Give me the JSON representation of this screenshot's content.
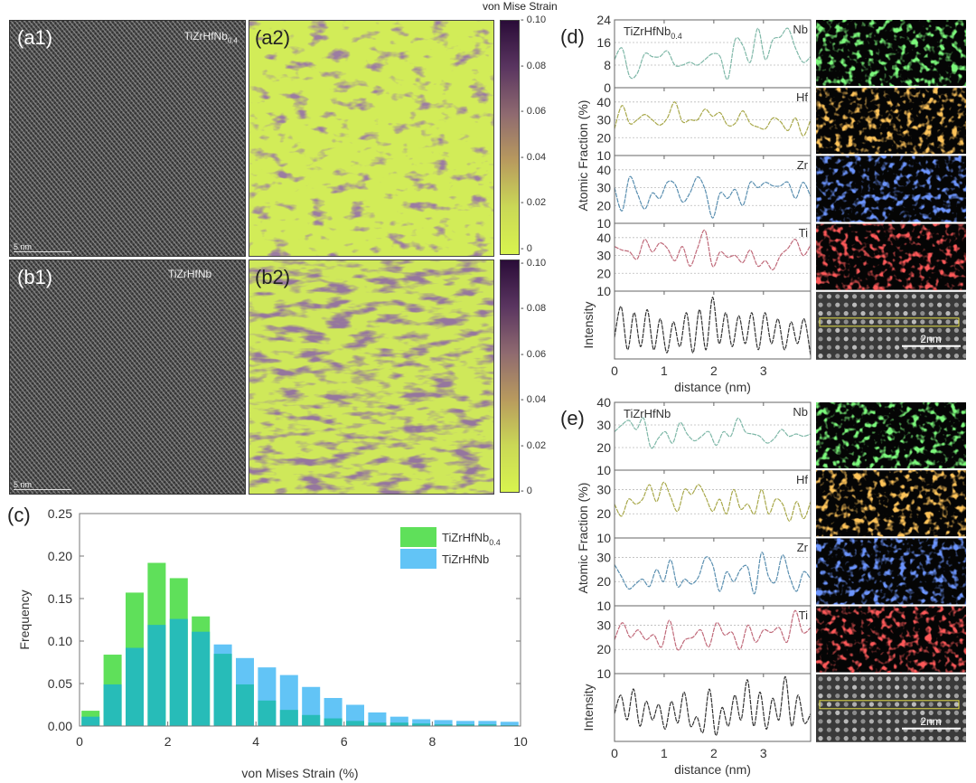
{
  "panels": {
    "a1": {
      "label": "(a1)",
      "composition": {
        "base": "TiZrHfNb",
        "sub": "0.4"
      },
      "scale_bar": "5 nm"
    },
    "a2": {
      "label": "(a2)"
    },
    "b1": {
      "label": "(b1)",
      "composition": {
        "base": "TiZrHfNb",
        "sub": ""
      },
      "scale_bar": "5 nm"
    },
    "b2": {
      "label": "(b2)"
    },
    "colorbar": {
      "title": "von Mise Strain",
      "ticks": [
        "0.10",
        "0.08",
        "0.06",
        "0.04",
        "0.02",
        "0"
      ]
    },
    "c": {
      "label": "(c)"
    },
    "d": {
      "label": "(d)"
    },
    "e": {
      "label": "(e)"
    }
  },
  "colors": {
    "green": "#5fe05a",
    "blue": "#62c4f6",
    "overlap": "#27bcb8",
    "Nb": "#7fb8a8",
    "Hf": "#a8a84a",
    "Zr": "#5a8fb0",
    "Ti": "#c06a7a",
    "Intensity": "#333333"
  },
  "chart_data": [
    {
      "type": "bar",
      "id": "c",
      "title": "",
      "xlabel": "von Mises Strain (%)",
      "ylabel": "Frequency",
      "xlim": [
        0,
        10
      ],
      "ylim": [
        0,
        0.25
      ],
      "xticks": [
        "0",
        "2",
        "4",
        "6",
        "8",
        "10"
      ],
      "yticks": [
        "0.00",
        "0.05",
        "0.10",
        "0.15",
        "0.20",
        "0.25"
      ],
      "legend_position": "top-right",
      "bin_width": 0.5,
      "x": [
        0.25,
        0.75,
        1.25,
        1.75,
        2.25,
        2.75,
        3.25,
        3.75,
        4.25,
        4.75,
        5.25,
        5.75,
        6.25,
        6.75,
        7.25,
        7.75,
        8.25,
        8.75,
        9.25,
        9.75
      ],
      "series": [
        {
          "name": "TiZrHfNb",
          "sub": "0.4",
          "values": [
            0.018,
            0.084,
            0.157,
            0.192,
            0.174,
            0.129,
            0.085,
            0.049,
            0.03,
            0.019,
            0.013,
            0.009,
            0.006,
            0.004,
            0.004,
            0.003,
            0.002,
            0.002,
            0.002,
            0.001
          ]
        },
        {
          "name": "TiZrHfNb",
          "sub": "",
          "values": [
            0.011,
            0.049,
            0.092,
            0.119,
            0.126,
            0.111,
            0.096,
            0.08,
            0.069,
            0.06,
            0.046,
            0.033,
            0.025,
            0.016,
            0.011,
            0.008,
            0.007,
            0.006,
            0.006,
            0.005
          ]
        }
      ]
    },
    {
      "type": "line",
      "id": "d",
      "composition": {
        "base": "TiZrHfNb",
        "sub": "0.4"
      },
      "xlabel": "distance (nm)",
      "ylabel": "Atomic Fraction (%)",
      "xlim": [
        0,
        3.95
      ],
      "xticks": [
        "0",
        "1",
        "2",
        "3"
      ],
      "series": [
        {
          "name": "Nb",
          "ylim": [
            0,
            24
          ],
          "yticks": [
            "0",
            "8",
            "16",
            "24"
          ],
          "values": [
            10,
            14,
            4,
            5,
            12,
            11,
            11,
            13,
            8,
            8,
            9,
            8,
            10,
            12,
            11,
            3,
            17,
            15,
            9,
            21,
            10,
            17,
            18,
            21,
            14,
            9,
            11
          ]
        },
        {
          "name": "Hf",
          "ylim": [
            10,
            48
          ],
          "yticks": [
            "10",
            "20",
            "30",
            "40"
          ],
          "values": [
            25,
            38,
            28,
            30,
            33,
            30,
            27,
            31,
            40,
            29,
            30,
            30,
            36,
            32,
            34,
            27,
            28,
            35,
            28,
            26,
            25,
            31,
            29,
            24,
            31,
            21,
            30
          ]
        },
        {
          "name": "Zr",
          "ylim": [
            10,
            48
          ],
          "yticks": [
            "10",
            "20",
            "30",
            "40"
          ],
          "values": [
            30,
            17,
            36,
            27,
            18,
            27,
            24,
            33,
            32,
            22,
            27,
            36,
            29,
            13,
            27,
            24,
            29,
            20,
            33,
            30,
            33,
            31,
            31,
            33,
            24,
            33,
            25
          ]
        },
        {
          "name": "Ti",
          "ylim": [
            10,
            48
          ],
          "yticks": [
            "10",
            "20",
            "30",
            "40"
          ],
          "values": [
            35,
            33,
            32,
            28,
            39,
            32,
            37,
            34,
            27,
            35,
            24,
            34,
            44,
            24,
            32,
            29,
            30,
            26,
            33,
            24,
            27,
            22,
            30,
            34,
            39,
            30,
            36
          ]
        },
        {
          "name": "Intensity",
          "ylim": [
            -0.05,
            1.05
          ],
          "yticks": [],
          "values": [
            0.3,
            0.8,
            0.1,
            0.7,
            0.15,
            0.75,
            0.1,
            0.6,
            0.05,
            0.55,
            0.15,
            0.7,
            0.05,
            0.75,
            0.1,
            0.95,
            0.2,
            0.7,
            0.15,
            0.65,
            0.2,
            0.7,
            0.1,
            0.7,
            0.2,
            0.6,
            0.1,
            0.55,
            0.2,
            0.6,
            0.0
          ]
        }
      ],
      "scale_bar": "2nm"
    },
    {
      "type": "line",
      "id": "e",
      "composition": {
        "base": "TiZrHfNb",
        "sub": ""
      },
      "xlabel": "distance (nm)",
      "ylabel": "Atomic Fraction (%)",
      "xlim": [
        0,
        3.95
      ],
      "xticks": [
        "0",
        "1",
        "2",
        "3"
      ],
      "series": [
        {
          "name": "Nb",
          "ylim": [
            10,
            40
          ],
          "yticks": [
            "10",
            "20",
            "30",
            "40"
          ],
          "values": [
            27,
            30,
            32,
            28,
            33,
            20,
            24,
            27,
            22,
            31,
            26,
            23,
            25,
            27,
            21,
            27,
            25,
            33,
            27,
            26,
            25,
            22,
            24,
            28,
            25,
            26,
            25,
            26
          ]
        },
        {
          "name": "Hf",
          "ylim": [
            10,
            38
          ],
          "yticks": [
            "10",
            "20",
            "30"
          ],
          "values": [
            24,
            19,
            26,
            24,
            26,
            32,
            25,
            33,
            27,
            21,
            30,
            28,
            32,
            27,
            21,
            26,
            20,
            30,
            22,
            24,
            20,
            30,
            20,
            26,
            24,
            17,
            25,
            18,
            25
          ]
        },
        {
          "name": "Zr",
          "ylim": [
            10,
            38
          ],
          "yticks": [
            "10",
            "20",
            "30"
          ],
          "values": [
            27,
            22,
            17,
            19,
            21,
            18,
            25,
            20,
            29,
            18,
            21,
            19,
            22,
            30,
            27,
            16,
            24,
            20,
            25,
            26,
            15,
            32,
            22,
            20,
            31,
            22,
            16,
            24,
            21
          ]
        },
        {
          "name": "Ti",
          "ylim": [
            10,
            38
          ],
          "yticks": [
            "10",
            "20",
            "30"
          ],
          "values": [
            24,
            31,
            25,
            28,
            24,
            26,
            21,
            32,
            20,
            24,
            25,
            28,
            21,
            31,
            26,
            27,
            20,
            30,
            23,
            28,
            27,
            29,
            23,
            36,
            27,
            29
          ]
        },
        {
          "name": "Intensity",
          "ylim": [
            -0.05,
            1.05
          ],
          "yticks": [],
          "values": [
            0.4,
            0.7,
            0.3,
            0.8,
            0.2,
            0.6,
            0.3,
            0.55,
            0.15,
            0.6,
            0.25,
            0.75,
            0.2,
            0.35,
            0.1,
            0.8,
            0.05,
            0.5,
            0.2,
            0.7,
            0.3,
            0.95,
            0.2,
            0.75,
            0.15,
            0.65,
            0.3,
            1.0,
            0.2,
            0.7,
            0.25,
            0.4
          ]
        }
      ],
      "scale_bar": "2nm"
    }
  ]
}
